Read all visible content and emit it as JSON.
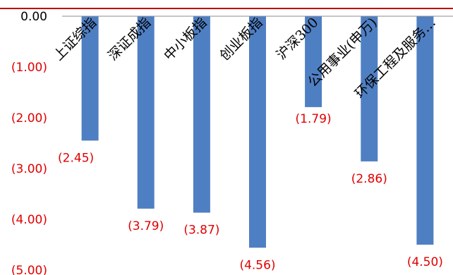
{
  "colors": {
    "bar": "#4f7fc3",
    "axis_label": "#e00000",
    "zero_label": "#000000",
    "title": "#1f3c8f",
    "rule": "#c00000"
  },
  "chart_data": {
    "type": "bar",
    "title": "",
    "xlabel": "",
    "ylabel": "",
    "ylim": [
      -5,
      0
    ],
    "grid": false,
    "categories": [
      "上证综指",
      "深证成指",
      "中小板指",
      "创业板指",
      "沪深300",
      "公用事业(申万)",
      "环保工程及服务…"
    ],
    "values": [
      -2.45,
      -3.79,
      -3.87,
      -4.56,
      -1.79,
      -2.86,
      -4.5
    ],
    "data_labels": [
      "(2.45)",
      "(3.79)",
      "(3.87)",
      "(4.56)",
      "(1.79)",
      "(2.86)",
      "(4.50)"
    ],
    "y_ticks": [
      0,
      -1,
      -2,
      -3,
      -4,
      -5
    ],
    "y_tick_labels": [
      "0.00",
      "(1.00)",
      "(2.00)",
      "(3.00)",
      "(4.00)",
      "(5.00)"
    ]
  }
}
